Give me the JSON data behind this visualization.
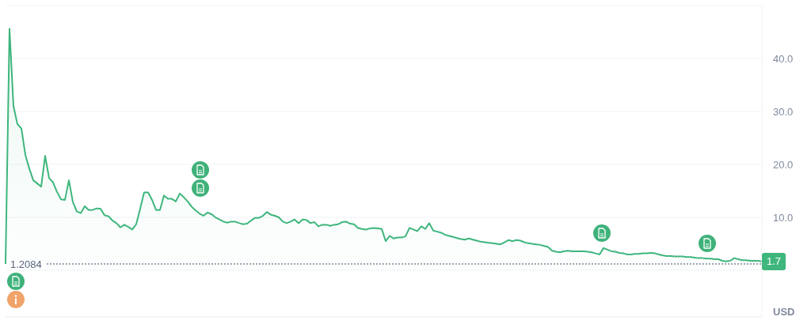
{
  "chart_data": {
    "type": "area",
    "color": "#3eb67d",
    "ylabel": "USD",
    "categories": [
      null,
      null,
      null,
      null,
      null,
      null,
      null,
      null,
      null,
      null,
      null,
      null,
      null,
      null,
      null,
      null,
      null,
      null,
      null,
      null,
      null,
      null,
      null,
      null,
      null,
      null,
      null,
      null,
      null,
      null,
      null,
      null,
      null,
      null,
      null,
      null,
      null,
      null,
      null,
      null,
      null,
      null,
      null,
      null,
      null,
      null,
      null,
      null,
      null,
      null,
      null,
      null,
      null,
      null,
      null,
      null,
      null,
      null,
      null,
      null,
      null,
      null,
      null,
      null,
      null,
      null,
      null,
      null,
      null,
      null,
      null,
      null,
      null,
      null,
      null,
      null,
      null,
      null,
      null,
      null,
      null,
      null,
      null,
      null,
      null,
      null,
      null,
      null,
      null,
      null,
      null,
      null,
      null,
      null,
      null,
      null,
      null,
      null,
      null,
      null,
      null,
      null,
      null,
      null,
      null,
      null,
      null,
      null,
      null,
      null,
      null,
      null,
      null,
      null,
      null,
      null,
      null,
      null,
      null,
      null,
      null,
      null,
      null,
      null,
      null,
      null,
      null,
      null,
      null,
      null,
      null,
      null,
      null,
      null,
      null,
      null,
      null,
      null,
      null,
      null,
      null,
      null,
      null,
      null,
      null,
      null,
      null,
      null,
      null,
      null,
      null,
      null,
      null,
      null,
      null,
      null,
      null,
      null,
      null,
      null,
      null,
      null,
      null,
      null,
      null,
      null,
      null,
      null,
      null,
      null,
      null,
      null,
      null,
      null,
      null,
      null,
      null,
      null,
      null,
      null,
      null,
      null,
      null,
      null,
      null,
      null,
      null,
      null,
      null,
      null,
      null,
      null
    ],
    "values": [
      1.2,
      45.6,
      31,
      27.6,
      26.8,
      21.8,
      19.2,
      17.0,
      16.4,
      15.8,
      21.6,
      17.4,
      16.6,
      14.8,
      13.4,
      13.3,
      17.0,
      12.9,
      11.1,
      10.8,
      12.1,
      11.4,
      11.4,
      11.7,
      11.6,
      10.4,
      10.2,
      9.4,
      8.9,
      8.1,
      8.6,
      8.2,
      7.7,
      8.7,
      11.6,
      14.7,
      14.7,
      13.3,
      11.4,
      11.4,
      14.1,
      13.5,
      13.5,
      13.0,
      14.5,
      13.8,
      13.0,
      12.0,
      11.3,
      10.7,
      10.3,
      10.9,
      10.6,
      10.0,
      9.6,
      9.2,
      9.0,
      9.2,
      9.2,
      8.9,
      8.7,
      8.8,
      9.4,
      9.9,
      9.9,
      10.3,
      11.0,
      10.5,
      10.3,
      10.0,
      9.2,
      8.9,
      9.2,
      9.6,
      8.9,
      9.6,
      9.5,
      8.9,
      9.1,
      8.3,
      8.6,
      8.6,
      8.4,
      8.6,
      8.7,
      9.1,
      9.2,
      8.8,
      8.7,
      8.0,
      7.8,
      7.7,
      7.9,
      8.0,
      7.9,
      7.8,
      5.5,
      6.5,
      6.0,
      6.2,
      6.2,
      6.4,
      8.0,
      7.7,
      7.4,
      8.3,
      7.8,
      8.9,
      7.5,
      7.3,
      7.1,
      6.7,
      6.5,
      6.3,
      6.1,
      5.9,
      5.8,
      6.0,
      5.8,
      5.6,
      5.4,
      5.3,
      5.2,
      5.1,
      5.0,
      4.9,
      5.3,
      5.7,
      5.5,
      5.7,
      5.6,
      5.3,
      5.1,
      5.0,
      4.9,
      4.8,
      4.6,
      4.4,
      3.7,
      3.5,
      3.4,
      3.6,
      3.7,
      3.6,
      3.6,
      3.6,
      3.6,
      3.5,
      3.4,
      3.2,
      3.0,
      4.2,
      3.9,
      3.6,
      3.5,
      3.3,
      3.2,
      3.0,
      3.0,
      3.1,
      3.1,
      3.2,
      3.2,
      3.3,
      3.2,
      3.0,
      2.8,
      2.7,
      2.7,
      2.6,
      2.6,
      2.6,
      2.5,
      2.5,
      2.4,
      2.3,
      2.3,
      2.2,
      2.2,
      2.1,
      2.1,
      1.8,
      1.7,
      1.8,
      2.3,
      2.1,
      1.9,
      1.9,
      1.8,
      1.8,
      1.8,
      1.7
    ],
    "ylim": [
      -8.8,
      50
    ],
    "yticks": [
      {
        "value": 0,
        "label": null
      },
      {
        "value": 10,
        "label": "10.0"
      },
      {
        "value": 20,
        "label": "20.0"
      },
      {
        "value": 30,
        "label": "30.0"
      },
      {
        "value": 40,
        "label": "40.0"
      },
      {
        "value": 50,
        "label": null
      }
    ],
    "grid": "y",
    "tick_labels": "y",
    "ref_lines": [
      {
        "axis": "y",
        "value": 1.2084,
        "label": "1.2084",
        "line_style": "dotted"
      }
    ],
    "annotations": [
      {
        "text": "1.7",
        "y": 1.7
      }
    ]
  }
}
